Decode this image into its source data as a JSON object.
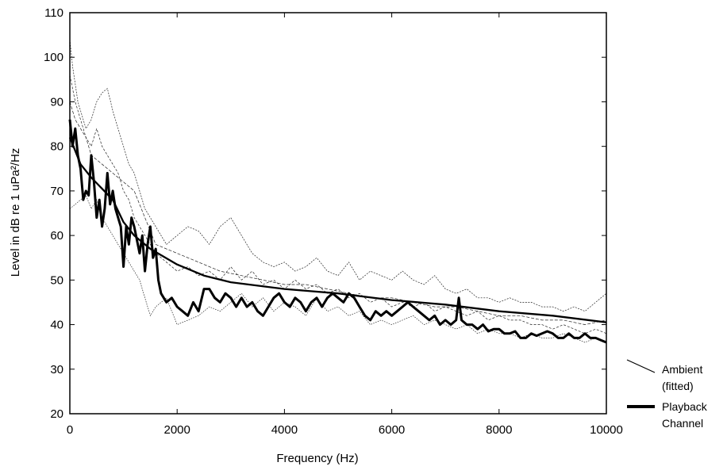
{
  "chart_data": {
    "type": "line",
    "xlabel": "Frequency (Hz)",
    "ylabel": "Level in dB re 1 uPa²/Hz",
    "xlim": [
      0,
      10000
    ],
    "ylim": [
      20,
      110
    ],
    "x_ticks": [
      "0",
      "2000",
      "4000",
      "6000",
      "8000",
      "10000"
    ],
    "y_ticks": [
      "20",
      "30",
      "40",
      "50",
      "60",
      "70",
      "80",
      "90",
      "100",
      "110"
    ],
    "grid": false,
    "legend_position": "right, outside plot",
    "legend": [
      {
        "label_line1": "Ambient",
        "label_line2": "(fitted)",
        "style": "thin"
      },
      {
        "label_line1": "Playback",
        "label_line2": "Channel",
        "style": "thick"
      }
    ],
    "series": [
      {
        "label": "Ambient (fitted)",
        "style": "thick-smooth",
        "x": [
          0,
          100,
          200,
          400,
          600,
          800,
          1000,
          1200,
          1500,
          2000,
          2500,
          3000,
          4000,
          5000,
          6000,
          7000,
          8000,
          9000,
          10000
        ],
        "y": [
          82,
          79,
          76,
          73,
          70.5,
          68,
          63,
          60,
          57,
          53.5,
          51,
          49.5,
          48,
          47,
          45.5,
          44.5,
          43,
          42,
          40.5
        ]
      },
      {
        "label": "Playback Channel",
        "style": "thick-noisy",
        "x": [
          0,
          50,
          100,
          150,
          200,
          250,
          300,
          350,
          400,
          450,
          500,
          550,
          600,
          650,
          700,
          750,
          800,
          850,
          900,
          950,
          1000,
          1050,
          1100,
          1150,
          1200,
          1250,
          1300,
          1350,
          1400,
          1450,
          1500,
          1550,
          1600,
          1650,
          1700,
          1800,
          1900,
          2000,
          2100,
          2200,
          2300,
          2400,
          2500,
          2600,
          2700,
          2800,
          2900,
          3000,
          3100,
          3200,
          3300,
          3400,
          3500,
          3600,
          3700,
          3800,
          3900,
          4000,
          4100,
          4200,
          4300,
          4400,
          4500,
          4600,
          4700,
          4800,
          4900,
          5000,
          5100,
          5200,
          5300,
          5400,
          5500,
          5600,
          5700,
          5800,
          5900,
          6000,
          6100,
          6200,
          6300,
          6400,
          6500,
          6600,
          6700,
          6800,
          6900,
          7000,
          7100,
          7200,
          7250,
          7300,
          7400,
          7500,
          7600,
          7700,
          7800,
          7900,
          8000,
          8100,
          8200,
          8300,
          8400,
          8500,
          8600,
          8700,
          8800,
          8900,
          9000,
          9100,
          9200,
          9300,
          9400,
          9500,
          9600,
          9700,
          9800,
          9900,
          10000
        ],
        "y": [
          86,
          80,
          84,
          78,
          75,
          68,
          70,
          69,
          78,
          72,
          64,
          68,
          62,
          66,
          74,
          67,
          70,
          66,
          64,
          62,
          53,
          62,
          58,
          64,
          62,
          59,
          56,
          60,
          52,
          58,
          62,
          55,
          57,
          50,
          47,
          45,
          46,
          44,
          43,
          42,
          45,
          43,
          48,
          48,
          46,
          45,
          47,
          46,
          44,
          46,
          44,
          45,
          43,
          42,
          44,
          46,
          47,
          45,
          44,
          46,
          45,
          43,
          45,
          46,
          44,
          46,
          47,
          46,
          45,
          47,
          46,
          44,
          42,
          41,
          43,
          42,
          43,
          42,
          43,
          44,
          45,
          44,
          43,
          42,
          41,
          42,
          40,
          41,
          40,
          41,
          46,
          41,
          40,
          40,
          39,
          40,
          38.5,
          39,
          39,
          38,
          38,
          38.5,
          37,
          37,
          38,
          37.5,
          38,
          38.5,
          38,
          37,
          37,
          38,
          37,
          37,
          38,
          37,
          37,
          36.5,
          36
        ]
      }
    ],
    "raw_ambient_traces": [
      {
        "x": [
          0,
          50,
          100,
          150,
          200,
          300,
          400,
          500,
          600,
          700,
          800,
          900,
          1000,
          1100,
          1200,
          1300,
          1400,
          1500,
          1600,
          1800,
          2000,
          2200,
          2400,
          2600,
          2800,
          3000,
          3200,
          3400,
          3600,
          3800,
          4000,
          4200,
          4400,
          4600,
          4800,
          5000,
          5200,
          5400,
          5600,
          5800,
          6000,
          6200,
          6400,
          6600,
          6800,
          7000,
          7200,
          7400,
          7600,
          7800,
          8000,
          8200,
          8400,
          8600,
          8800,
          9000,
          9200,
          9400,
          9600,
          9800,
          10000
        ],
        "y": [
          104,
          98,
          94,
          90,
          88,
          84,
          86,
          90,
          92,
          93,
          88,
          84,
          80,
          76,
          74,
          70,
          66,
          64,
          62,
          58,
          60,
          62,
          61,
          58,
          62,
          64,
          60,
          56,
          54,
          53,
          54,
          52,
          53,
          55,
          52,
          51,
          54,
          50,
          52,
          51,
          50,
          52,
          50,
          49,
          51,
          48,
          47,
          48,
          46,
          46,
          45,
          46,
          45,
          45,
          44,
          44,
          43,
          44,
          43,
          45,
          47
        ]
      },
      {
        "x": [
          0,
          100,
          200,
          300,
          400,
          500,
          600,
          700,
          800,
          900,
          1000,
          1100,
          1200,
          1300,
          1400,
          1500,
          1600,
          1800,
          2000,
          2200,
          2400,
          2600,
          2800,
          3000,
          3200,
          3400,
          3600,
          3800,
          4000,
          4200,
          4400,
          4600,
          4800,
          5000,
          5200,
          5400,
          5600,
          5800,
          6000,
          6200,
          6400,
          6600,
          6800,
          7000,
          7200,
          7400,
          7600,
          7800,
          8000,
          8200,
          8400,
          8600,
          8800,
          9000,
          9200,
          9400,
          9600,
          9800,
          10000
        ],
        "y": [
          96,
          90,
          86,
          82,
          80,
          84,
          80,
          78,
          76,
          74,
          70,
          68,
          64,
          62,
          60,
          58,
          56,
          54,
          52,
          53,
          51,
          52,
          50,
          53,
          50,
          52,
          49,
          50,
          48,
          50,
          48,
          49,
          47,
          48,
          46,
          47,
          45,
          46,
          44,
          45,
          44,
          45,
          43,
          44,
          43,
          42,
          43,
          41,
          42,
          41,
          41,
          40,
          40,
          39,
          40,
          39,
          38,
          39,
          38
        ]
      },
      {
        "x": [
          0,
          100,
          200,
          300,
          400,
          500,
          600,
          700,
          800,
          900,
          1000,
          1100,
          1200,
          1300,
          1400,
          1500,
          1600,
          1800,
          2000,
          2200,
          2400,
          2600,
          2800,
          3000,
          3200,
          3400,
          3600,
          3800,
          4000,
          4200,
          4400,
          4600,
          4800,
          5000,
          5200,
          5400,
          5600,
          5800,
          6000,
          6200,
          6400,
          6600,
          6800,
          7000,
          7200,
          7400,
          7600,
          7800,
          8000,
          8200,
          8400,
          8600,
          8800,
          9000,
          9200,
          9400,
          9600,
          9800,
          10000
        ],
        "y": [
          66,
          67,
          68,
          69,
          66,
          68,
          64,
          62,
          60,
          58,
          56,
          54,
          52,
          50,
          46,
          42,
          44,
          46,
          40,
          41,
          42,
          44,
          43,
          45,
          47,
          44,
          46,
          43,
          45,
          44,
          42,
          46,
          43,
          44,
          42,
          43,
          40,
          41,
          40,
          41,
          42,
          40,
          41,
          40,
          39,
          40,
          38,
          39,
          38,
          38,
          37,
          38,
          37,
          37,
          38,
          37,
          36,
          37,
          36
        ]
      },
      {
        "x": [
          0,
          100,
          200,
          300,
          400,
          600,
          800,
          1000,
          1200,
          1400,
          1600,
          2000,
          2400,
          2800,
          3200,
          3600,
          4000,
          4400,
          4800,
          5200,
          5600,
          6000,
          6400,
          6800,
          7200,
          7600,
          8000,
          8400,
          8800,
          9200,
          9600,
          10000
        ],
        "y": [
          90,
          86,
          84,
          82,
          78,
          76,
          74,
          72,
          70,
          64,
          58,
          56,
          54,
          52,
          51,
          50,
          49,
          49,
          48,
          47,
          46,
          46,
          45,
          44,
          44,
          43,
          42,
          42,
          41,
          41,
          40,
          41
        ]
      }
    ]
  }
}
